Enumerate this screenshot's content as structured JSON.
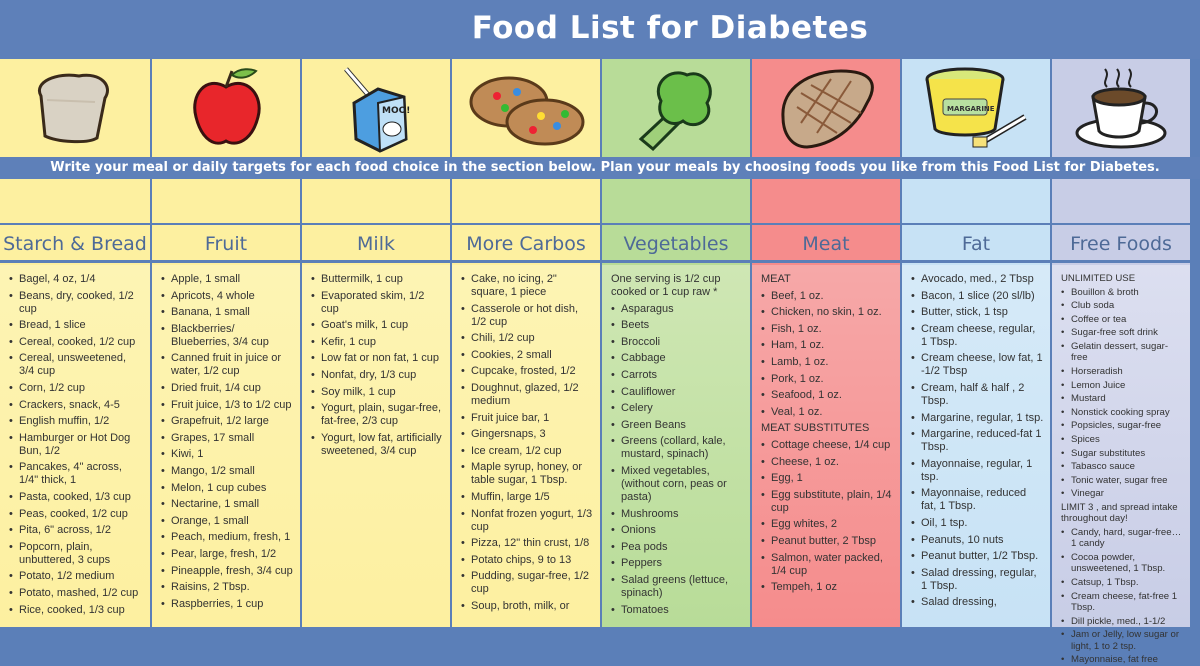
{
  "title": "Food List for Diabetes",
  "instructions": "Write your meal or daily targets for each food choice in the section below. Plan your meals by choosing foods you like from this Food List for Diabetes.",
  "colors": {
    "banner": "#5e80b9",
    "yellow": "#fdf0a0",
    "green": "#b8dc98",
    "red": "#f58c8c",
    "blue": "#c7e2f5",
    "lavender": "#c8cde6"
  },
  "columns": [
    {
      "name": "Starch & Bread",
      "icon": "bread",
      "bg": "#fdf0a0",
      "listbg": "#fdf4b4",
      "items": [
        "Bagel, 4 oz, 1/4",
        "Beans, dry, cooked, 1/2  cup",
        "Bread, 1 slice",
        "Cereal, cooked, 1/2 cup",
        "Cereal, unsweetened, 3/4 cup",
        "Corn, 1/2 cup",
        "Crackers, snack, 4-5",
        "English muffin, 1/2",
        "Hamburger or Hot Dog Bun, 1/2",
        "Pancakes, 4\" across, 1/4\" thick, 1",
        "Pasta, cooked, 1/3 cup",
        "Peas, cooked, 1/2 cup",
        "Pita, 6\" across, 1/2",
        "Popcorn, plain, unbuttered, 3 cups",
        "Potato, 1/2 medium",
        "Potato, mashed, 1/2 cup",
        "Rice, cooked, 1/3 cup"
      ]
    },
    {
      "name": "Fruit",
      "icon": "apple",
      "bg": "#fdf0a0",
      "listbg": "#fdf4b4",
      "items": [
        "Apple, 1 small",
        "Apricots, 4 whole",
        "Banana, 1 small",
        "Blackberries/ Blueberries, 3/4 cup",
        "Canned fruit in juice or water, 1/2 cup",
        "Dried fruit, 1/4 cup",
        "Fruit juice, 1/3 to 1/2 cup",
        "Grapefruit, 1/2 large",
        "Grapes, 17 small",
        "Kiwi, 1",
        "Mango, 1/2 small",
        "Melon, 1 cup cubes",
        "Nectarine, 1 small",
        "Orange, 1 small",
        "Peach, medium, fresh, 1",
        "Pear, large, fresh, 1/2",
        "Pineapple, fresh, 3/4 cup",
        "Raisins, 2 Tbsp.",
        "Raspberries, 1 cup"
      ]
    },
    {
      "name": "Milk",
      "icon": "milk-carton",
      "bg": "#fdf0a0",
      "listbg": "#fdf4b4",
      "items": [
        "Buttermilk, 1 cup",
        "Evaporated skim, 1/2 cup",
        "Goat's milk, 1 cup",
        "Kefir, 1 cup",
        "Low fat or non fat, 1 cup",
        "Nonfat, dry, 1/3 cup",
        "Soy milk, 1 cup",
        "Yogurt, plain, sugar-free, fat-free, 2/3 cup",
        "Yogurt, low fat, artificially sweetened, 3/4 cup"
      ]
    },
    {
      "name": "More Carbos",
      "icon": "cookies",
      "bg": "#fdf0a0",
      "listbg": "#fdf4b4",
      "items": [
        "Cake, no icing, 2\" square, 1 piece",
        "Casserole or hot dish, 1/2 cup",
        "Chili, 1/2 cup",
        "Cookies, 2 small",
        "Cupcake, frosted, 1/2",
        "Doughnut, glazed, 1/2 medium",
        "Fruit juice bar, 1",
        "Gingersnaps, 3",
        "Ice cream, 1/2 cup",
        "Maple syrup, honey, or table sugar, 1 Tbsp.",
        "Muffin, large 1/5",
        "Nonfat frozen yogurt, 1/3 cup",
        "Pizza, 12\" thin crust, 1/8",
        "Potato chips, 9 to 13",
        "Pudding, sugar-free, 1/2 cup",
        "Soup, broth, milk, or"
      ]
    },
    {
      "name": "Vegetables",
      "icon": "broccoli",
      "bg": "#b8dc98",
      "listbg": "#cfe7b4",
      "items": [
        {
          "heading": "One serving is 1/2 cup cooked or 1 cup raw *"
        },
        "Asparagus",
        "Beets",
        "Broccoli",
        "Cabbage",
        "Carrots",
        "Cauliflower",
        "Celery",
        "Green Beans",
        "Greens (collard, kale, mustard, spinach)",
        "Mixed vegetables, (without corn, peas or pasta)",
        "Mushrooms",
        "Onions",
        "Pea pods",
        "Peppers",
        "Salad greens (lettuce, spinach)",
        "Tomatoes"
      ]
    },
    {
      "name": "Meat",
      "icon": "steak",
      "bg": "#f58c8c",
      "listbg": "#f6a8a8",
      "items": [
        {
          "heading": "MEAT"
        },
        "Beef, 1 oz.",
        "Chicken, no skin, 1 oz.",
        "Fish, 1 oz.",
        "Ham, 1 oz.",
        "Lamb, 1 oz.",
        "Pork, 1 oz.",
        "Seafood, 1 oz.",
        "Veal, 1 oz.",
        {
          "heading": "MEAT SUBSTITUTES"
        },
        "Cottage cheese, 1/4 cup",
        "Cheese, 1 oz.",
        "Egg, 1",
        "Egg substitute, plain, 1/4 cup",
        "Egg whites, 2",
        "Peanut butter, 2 Tbsp",
        "Salmon, water packed, 1/4 cup",
        "Tempeh, 1 oz"
      ]
    },
    {
      "name": "Fat",
      "icon": "margarine-tub",
      "bg": "#c7e2f5",
      "listbg": "#d6eaf8",
      "items": [
        "Avocado, med., 2 Tbsp",
        "Bacon, 1 slice (20 sl/lb)",
        "Butter, stick, 1 tsp",
        "Cream cheese, regular, 1 Tbsp.",
        "Cream cheese, low fat, 1 -1/2 Tbsp",
        "Cream, half & half , 2 Tbsp.",
        "Margarine, regular, 1 tsp.",
        "Margarine, reduced-fat 1 Tbsp.",
        "Mayonnaise, regular, 1 tsp.",
        "Mayonnaise, reduced fat, 1 Tbsp.",
        "Oil, 1 tsp.",
        "Peanuts, 10 nuts",
        "Peanut butter, 1/2 Tbsp.",
        "Salad dressing, regular, 1 Tbsp.",
        "Salad dressing,"
      ]
    },
    {
      "name": "Free Foods",
      "icon": "coffee-cup",
      "bg": "#c8cde6",
      "listbg": "#dcdff0",
      "small": true,
      "items": [
        {
          "heading": "UNLIMITED USE"
        },
        "Bouillon & broth",
        "Club soda",
        "Coffee or tea",
        "Sugar-free  soft drink",
        "Gelatin dessert, sugar-free",
        "Horseradish",
        "Lemon Juice",
        "Mustard",
        "Nonstick cooking spray",
        "Popsicles, sugar-free",
        "Spices",
        "Sugar substitutes",
        "Tabasco sauce",
        "Tonic water, sugar free",
        "Vinegar",
        {
          "heading": "LIMIT 3 , and spread intake throughout day!"
        },
        "Candy, hard, sugar-free…1 candy",
        "Cocoa powder, unsweetened, 1 Tbsp.",
        "Catsup, 1 Tbsp.",
        "Cream cheese, fat-free 1 Tbsp.",
        "Dill pickle, med., 1-1/2",
        "Jam or Jelly, low sugar or light, 1 to 2 tsp.",
        "Mayonnaise, fat free"
      ]
    }
  ],
  "icon_labels": {
    "milk": "MOO!",
    "margarine": "MARGARINE"
  }
}
